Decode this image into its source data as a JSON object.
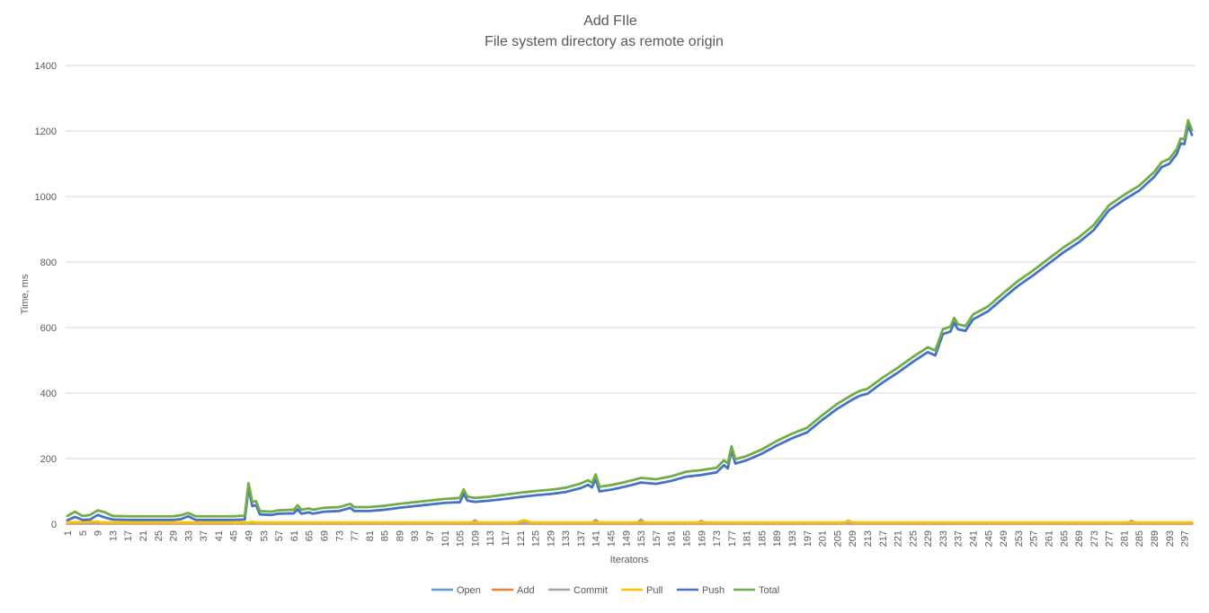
{
  "chart_data": {
    "type": "line",
    "title": "Add FIle",
    "subtitle": "File system directory as remote origin",
    "xlabel": "Iteratons",
    "ylabel": "Time, ms",
    "ylim": [
      0,
      1400
    ],
    "yticks": [
      0,
      200,
      400,
      600,
      800,
      1000,
      1200,
      1400
    ],
    "xlim": [
      1,
      299
    ],
    "x_tick_step": 4,
    "grid": true,
    "legend_position": "bottom",
    "series": [
      {
        "name": "Open",
        "color": "#5b9bd5",
        "points": [
          [
            1,
            2
          ],
          [
            299,
            2
          ]
        ]
      },
      {
        "name": "Add",
        "color": "#ed7d31",
        "points": [
          [
            1,
            2
          ],
          [
            299,
            2
          ]
        ]
      },
      {
        "name": "Commit",
        "color": "#a5a5a5",
        "points": [
          [
            1,
            3
          ],
          [
            50,
            3
          ],
          [
            108,
            4
          ],
          [
            109,
            12
          ],
          [
            110,
            4
          ],
          [
            140,
            4
          ],
          [
            141,
            13
          ],
          [
            142,
            4
          ],
          [
            152,
            4
          ],
          [
            153,
            14
          ],
          [
            154,
            4
          ],
          [
            168,
            4
          ],
          [
            169,
            10
          ],
          [
            170,
            4
          ],
          [
            282,
            4
          ],
          [
            283,
            10
          ],
          [
            284,
            4
          ],
          [
            299,
            4
          ]
        ]
      },
      {
        "name": "Pull",
        "color": "#ffc000",
        "points": [
          [
            1,
            5
          ],
          [
            9,
            8
          ],
          [
            10,
            5
          ],
          [
            49,
            5
          ],
          [
            50,
            7
          ],
          [
            51,
            5
          ],
          [
            120,
            5
          ],
          [
            122,
            12
          ],
          [
            124,
            5
          ],
          [
            207,
            5
          ],
          [
            208,
            11
          ],
          [
            209,
            5
          ],
          [
            299,
            5
          ]
        ]
      },
      {
        "name": "Push",
        "color": "#4472c4",
        "points": [
          [
            1,
            12
          ],
          [
            3,
            22
          ],
          [
            5,
            13
          ],
          [
            7,
            14
          ],
          [
            9,
            28
          ],
          [
            11,
            20
          ],
          [
            13,
            14
          ],
          [
            17,
            13
          ],
          [
            21,
            13
          ],
          [
            25,
            13
          ],
          [
            29,
            13
          ],
          [
            31,
            15
          ],
          [
            33,
            24
          ],
          [
            35,
            13
          ],
          [
            41,
            13
          ],
          [
            45,
            13
          ],
          [
            48,
            14
          ],
          [
            49,
            110
          ],
          [
            50,
            55
          ],
          [
            51,
            58
          ],
          [
            52,
            30
          ],
          [
            55,
            28
          ],
          [
            57,
            32
          ],
          [
            61,
            33
          ],
          [
            62,
            45
          ],
          [
            63,
            32
          ],
          [
            65,
            36
          ],
          [
            66,
            32
          ],
          [
            69,
            38
          ],
          [
            73,
            40
          ],
          [
            76,
            50
          ],
          [
            77,
            40
          ],
          [
            81,
            40
          ],
          [
            85,
            44
          ],
          [
            89,
            50
          ],
          [
            93,
            55
          ],
          [
            97,
            60
          ],
          [
            101,
            65
          ],
          [
            105,
            67
          ],
          [
            106,
            92
          ],
          [
            107,
            72
          ],
          [
            109,
            68
          ],
          [
            113,
            72
          ],
          [
            117,
            77
          ],
          [
            121,
            83
          ],
          [
            125,
            88
          ],
          [
            129,
            92
          ],
          [
            133,
            98
          ],
          [
            137,
            110
          ],
          [
            139,
            120
          ],
          [
            140,
            112
          ],
          [
            141,
            138
          ],
          [
            142,
            100
          ],
          [
            145,
            105
          ],
          [
            149,
            115
          ],
          [
            153,
            127
          ],
          [
            157,
            123
          ],
          [
            161,
            132
          ],
          [
            165,
            145
          ],
          [
            169,
            150
          ],
          [
            173,
            158
          ],
          [
            175,
            180
          ],
          [
            176,
            170
          ],
          [
            177,
            225
          ],
          [
            178,
            185
          ],
          [
            181,
            195
          ],
          [
            185,
            215
          ],
          [
            189,
            240
          ],
          [
            193,
            262
          ],
          [
            197,
            280
          ],
          [
            201,
            318
          ],
          [
            205,
            352
          ],
          [
            209,
            380
          ],
          [
            211,
            392
          ],
          [
            213,
            398
          ],
          [
            217,
            432
          ],
          [
            221,
            462
          ],
          [
            225,
            495
          ],
          [
            229,
            525
          ],
          [
            231,
            515
          ],
          [
            233,
            580
          ],
          [
            235,
            588
          ],
          [
            236,
            615
          ],
          [
            237,
            595
          ],
          [
            239,
            590
          ],
          [
            241,
            625
          ],
          [
            245,
            650
          ],
          [
            249,
            690
          ],
          [
            253,
            728
          ],
          [
            257,
            760
          ],
          [
            261,
            795
          ],
          [
            265,
            830
          ],
          [
            267,
            845
          ],
          [
            269,
            860
          ],
          [
            273,
            898
          ],
          [
            277,
            958
          ],
          [
            281,
            990
          ],
          [
            285,
            1018
          ],
          [
            289,
            1060
          ],
          [
            291,
            1090
          ],
          [
            293,
            1100
          ],
          [
            295,
            1130
          ],
          [
            296,
            1162
          ],
          [
            297,
            1160
          ],
          [
            298,
            1218
          ],
          [
            299,
            1188
          ]
        ]
      },
      {
        "name": "Total",
        "color": "#70ad47",
        "points": [
          [
            1,
            25
          ],
          [
            3,
            38
          ],
          [
            5,
            25
          ],
          [
            7,
            28
          ],
          [
            9,
            42
          ],
          [
            11,
            36
          ],
          [
            13,
            25
          ],
          [
            17,
            24
          ],
          [
            21,
            24
          ],
          [
            25,
            24
          ],
          [
            29,
            24
          ],
          [
            31,
            27
          ],
          [
            33,
            34
          ],
          [
            35,
            24
          ],
          [
            41,
            24
          ],
          [
            45,
            24
          ],
          [
            48,
            26
          ],
          [
            49,
            125
          ],
          [
            50,
            68
          ],
          [
            51,
            70
          ],
          [
            52,
            40
          ],
          [
            55,
            38
          ],
          [
            57,
            42
          ],
          [
            61,
            44
          ],
          [
            62,
            58
          ],
          [
            63,
            44
          ],
          [
            65,
            48
          ],
          [
            66,
            44
          ],
          [
            69,
            50
          ],
          [
            73,
            52
          ],
          [
            76,
            62
          ],
          [
            77,
            52
          ],
          [
            81,
            52
          ],
          [
            85,
            56
          ],
          [
            89,
            62
          ],
          [
            93,
            67
          ],
          [
            97,
            72
          ],
          [
            101,
            77
          ],
          [
            105,
            80
          ],
          [
            106,
            106
          ],
          [
            107,
            84
          ],
          [
            109,
            80
          ],
          [
            113,
            84
          ],
          [
            117,
            90
          ],
          [
            121,
            96
          ],
          [
            125,
            101
          ],
          [
            129,
            105
          ],
          [
            133,
            111
          ],
          [
            137,
            124
          ],
          [
            139,
            134
          ],
          [
            140,
            126
          ],
          [
            141,
            152
          ],
          [
            142,
            114
          ],
          [
            145,
            119
          ],
          [
            149,
            129
          ],
          [
            153,
            141
          ],
          [
            157,
            137
          ],
          [
            161,
            146
          ],
          [
            165,
            160
          ],
          [
            169,
            165
          ],
          [
            173,
            172
          ],
          [
            175,
            195
          ],
          [
            176,
            185
          ],
          [
            177,
            238
          ],
          [
            178,
            198
          ],
          [
            181,
            208
          ],
          [
            185,
            228
          ],
          [
            189,
            254
          ],
          [
            193,
            276
          ],
          [
            197,
            294
          ],
          [
            201,
            332
          ],
          [
            205,
            367
          ],
          [
            209,
            395
          ],
          [
            211,
            407
          ],
          [
            213,
            413
          ],
          [
            217,
            447
          ],
          [
            221,
            477
          ],
          [
            225,
            510
          ],
          [
            229,
            540
          ],
          [
            231,
            530
          ],
          [
            233,
            595
          ],
          [
            235,
            603
          ],
          [
            236,
            630
          ],
          [
            237,
            610
          ],
          [
            239,
            605
          ],
          [
            241,
            640
          ],
          [
            245,
            665
          ],
          [
            249,
            705
          ],
          [
            253,
            743
          ],
          [
            257,
            775
          ],
          [
            261,
            810
          ],
          [
            265,
            845
          ],
          [
            267,
            860
          ],
          [
            269,
            875
          ],
          [
            273,
            913
          ],
          [
            277,
            973
          ],
          [
            281,
            1005
          ],
          [
            285,
            1033
          ],
          [
            289,
            1075
          ],
          [
            291,
            1105
          ],
          [
            293,
            1115
          ],
          [
            295,
            1145
          ],
          [
            296,
            1177
          ],
          [
            297,
            1175
          ],
          [
            298,
            1233
          ],
          [
            299,
            1203
          ]
        ]
      }
    ]
  }
}
